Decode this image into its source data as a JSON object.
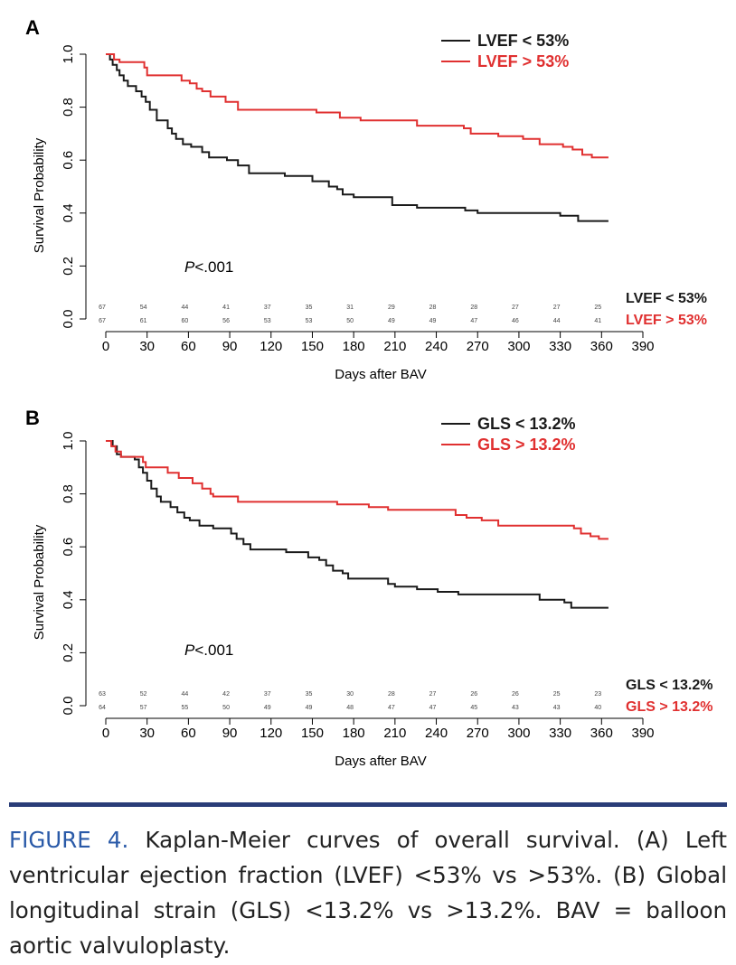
{
  "caption": {
    "label": "FIGURE 4.",
    "text": "Kaplan-Meier curves of overall survival. (A) Left ventricular ejection fraction (LVEF) <53% vs >53%. (B) Global longitudinal strain (GLS) <13.2% vs >13.2%. BAV = balloon aortic valvuloplasty."
  },
  "colors": {
    "low": "#1a1a1a",
    "high": "#e03030",
    "rule": "#2a3d78",
    "caption_label": "#2a5aa8"
  },
  "chart_data": [
    {
      "panel": "A",
      "type": "line",
      "step": true,
      "xlabel": "Days after BAV",
      "ylabel": "Survival Probability",
      "xlim": [
        0,
        390
      ],
      "ylim": [
        0,
        1
      ],
      "xticks": [
        0,
        30,
        60,
        90,
        120,
        150,
        180,
        210,
        240,
        270,
        300,
        330,
        360,
        390
      ],
      "yticks": [
        "0.0",
        "0.2",
        "0.4",
        "0.6",
        "0.8",
        "1.0"
      ],
      "annotation": {
        "italic": "P",
        "rest": "<.001"
      },
      "legend_position": "top-right",
      "series": [
        {
          "name": "LVEF < 53%",
          "color": "#1a1a1a",
          "points": [
            [
              0,
              1.0
            ],
            [
              3,
              0.98
            ],
            [
              5,
              0.96
            ],
            [
              8,
              0.94
            ],
            [
              10,
              0.92
            ],
            [
              13,
              0.9
            ],
            [
              16,
              0.88
            ],
            [
              22,
              0.86
            ],
            [
              26,
              0.84
            ],
            [
              29,
              0.82
            ],
            [
              32,
              0.79
            ],
            [
              37,
              0.75
            ],
            [
              45,
              0.72
            ],
            [
              48,
              0.7
            ],
            [
              51,
              0.68
            ],
            [
              56,
              0.66
            ],
            [
              62,
              0.65
            ],
            [
              70,
              0.63
            ],
            [
              75,
              0.61
            ],
            [
              88,
              0.6
            ],
            [
              96,
              0.58
            ],
            [
              104,
              0.55
            ],
            [
              130,
              0.54
            ],
            [
              150,
              0.52
            ],
            [
              162,
              0.5
            ],
            [
              168,
              0.49
            ],
            [
              172,
              0.47
            ],
            [
              180,
              0.46
            ],
            [
              208,
              0.43
            ],
            [
              226,
              0.42
            ],
            [
              261,
              0.41
            ],
            [
              270,
              0.4
            ],
            [
              330,
              0.39
            ],
            [
              343,
              0.37
            ],
            [
              365,
              0.37
            ]
          ]
        },
        {
          "name": "LVEF > 53%",
          "color": "#e03030",
          "points": [
            [
              0,
              1.0
            ],
            [
              6,
              0.98
            ],
            [
              10,
              0.97
            ],
            [
              28,
              0.95
            ],
            [
              30,
              0.92
            ],
            [
              55,
              0.9
            ],
            [
              61,
              0.89
            ],
            [
              66,
              0.87
            ],
            [
              70,
              0.86
            ],
            [
              76,
              0.84
            ],
            [
              87,
              0.82
            ],
            [
              96,
              0.79
            ],
            [
              153,
              0.78
            ],
            [
              170,
              0.76
            ],
            [
              185,
              0.75
            ],
            [
              226,
              0.73
            ],
            [
              260,
              0.72
            ],
            [
              265,
              0.7
            ],
            [
              285,
              0.69
            ],
            [
              303,
              0.68
            ],
            [
              315,
              0.66
            ],
            [
              332,
              0.65
            ],
            [
              339,
              0.64
            ],
            [
              346,
              0.62
            ],
            [
              353,
              0.61
            ],
            [
              365,
              0.61
            ]
          ]
        }
      ],
      "risk_table": {
        "time_points": [
          0,
          30,
          60,
          90,
          120,
          150,
          180,
          210,
          240,
          270,
          300,
          330,
          360
        ],
        "rows": [
          {
            "label": "LVEF < 53%",
            "color": "#1a1a1a",
            "values": [
              "67",
              "54",
              "44",
              "41",
              "37",
              "35",
              "31",
              "29",
              "28",
              "28",
              "27",
              "27",
              "25"
            ]
          },
          {
            "label": "LVEF > 53%",
            "color": "#e03030",
            "values": [
              "67",
              "61",
              "60",
              "56",
              "53",
              "53",
              "50",
              "49",
              "49",
              "47",
              "46",
              "44",
              "41"
            ]
          }
        ]
      }
    },
    {
      "panel": "B",
      "type": "line",
      "step": true,
      "xlabel": "Days after BAV",
      "ylabel": "Survival Probability",
      "xlim": [
        0,
        390
      ],
      "ylim": [
        0,
        1
      ],
      "xticks": [
        0,
        30,
        60,
        90,
        120,
        150,
        180,
        210,
        240,
        270,
        300,
        330,
        360,
        390
      ],
      "yticks": [
        "0.0",
        "0.2",
        "0.4",
        "0.6",
        "0.8",
        "1.0"
      ],
      "annotation": {
        "italic": "P",
        "rest": "<.001"
      },
      "legend_position": "top-right",
      "series": [
        {
          "name": "GLS < 13.2%",
          "color": "#1a1a1a",
          "points": [
            [
              0,
              1.0
            ],
            [
              5,
              0.98
            ],
            [
              8,
              0.95
            ],
            [
              11,
              0.94
            ],
            [
              21,
              0.93
            ],
            [
              24,
              0.9
            ],
            [
              27,
              0.88
            ],
            [
              30,
              0.85
            ],
            [
              33,
              0.82
            ],
            [
              37,
              0.79
            ],
            [
              40,
              0.77
            ],
            [
              47,
              0.75
            ],
            [
              52,
              0.73
            ],
            [
              57,
              0.71
            ],
            [
              61,
              0.7
            ],
            [
              68,
              0.68
            ],
            [
              78,
              0.67
            ],
            [
              91,
              0.65
            ],
            [
              95,
              0.63
            ],
            [
              100,
              0.61
            ],
            [
              105,
              0.59
            ],
            [
              131,
              0.58
            ],
            [
              147,
              0.56
            ],
            [
              155,
              0.55
            ],
            [
              160,
              0.53
            ],
            [
              165,
              0.51
            ],
            [
              172,
              0.5
            ],
            [
              176,
              0.48
            ],
            [
              205,
              0.46
            ],
            [
              210,
              0.45
            ],
            [
              226,
              0.44
            ],
            [
              241,
              0.43
            ],
            [
              256,
              0.42
            ],
            [
              315,
              0.4
            ],
            [
              333,
              0.39
            ],
            [
              338,
              0.37
            ],
            [
              365,
              0.37
            ]
          ]
        },
        {
          "name": "GLS > 13.2%",
          "color": "#e03030",
          "points": [
            [
              0,
              1.0
            ],
            [
              4,
              0.98
            ],
            [
              7,
              0.96
            ],
            [
              11,
              0.94
            ],
            [
              27,
              0.92
            ],
            [
              29,
              0.9
            ],
            [
              45,
              0.88
            ],
            [
              53,
              0.86
            ],
            [
              63,
              0.84
            ],
            [
              70,
              0.82
            ],
            [
              76,
              0.8
            ],
            [
              78,
              0.79
            ],
            [
              96,
              0.77
            ],
            [
              168,
              0.76
            ],
            [
              191,
              0.75
            ],
            [
              205,
              0.74
            ],
            [
              254,
              0.72
            ],
            [
              262,
              0.71
            ],
            [
              273,
              0.7
            ],
            [
              285,
              0.68
            ],
            [
              340,
              0.67
            ],
            [
              345,
              0.65
            ],
            [
              352,
              0.64
            ],
            [
              358,
              0.63
            ],
            [
              365,
              0.63
            ]
          ]
        }
      ],
      "risk_table": {
        "time_points": [
          0,
          30,
          60,
          90,
          120,
          150,
          180,
          210,
          240,
          270,
          300,
          330,
          360
        ],
        "rows": [
          {
            "label": "GLS < 13.2%",
            "color": "#1a1a1a",
            "values": [
              "63",
              "52",
              "44",
              "42",
              "37",
              "35",
              "30",
              "28",
              "27",
              "26",
              "26",
              "25",
              "23"
            ]
          },
          {
            "label": "GLS > 13.2%",
            "color": "#e03030",
            "values": [
              "64",
              "57",
              "55",
              "50",
              "49",
              "49",
              "48",
              "47",
              "47",
              "45",
              "43",
              "43",
              "40"
            ]
          }
        ]
      }
    }
  ]
}
